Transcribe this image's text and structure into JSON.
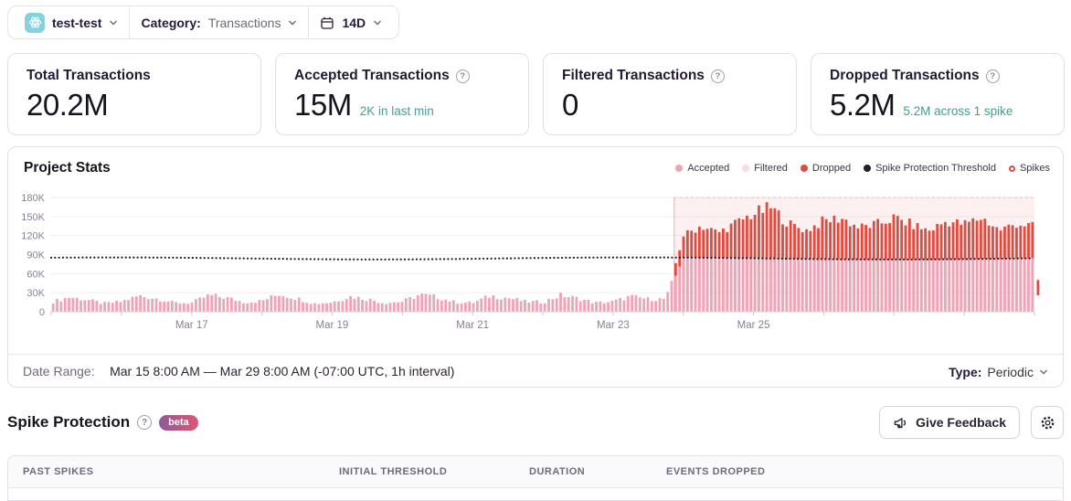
{
  "toolbar": {
    "project_name": "test-test",
    "category_label": "Category:",
    "category_value": "Transactions",
    "range_value": "14D"
  },
  "cards": [
    {
      "title": "Total Transactions",
      "value": "20.2M",
      "subtext": ""
    },
    {
      "title": "Accepted Transactions",
      "value": "15M",
      "subtext": "2K in last min"
    },
    {
      "title": "Filtered Transactions",
      "value": "0",
      "subtext": ""
    },
    {
      "title": "Dropped Transactions",
      "value": "5.2M",
      "subtext": "5.2M across 1 spike"
    }
  ],
  "chart": {
    "title": "Project Stats",
    "legend": [
      {
        "label": "Accepted",
        "color": "#eda4b6",
        "marker": "dot"
      },
      {
        "label": "Filtered",
        "color": "#f8dde4",
        "marker": "dot"
      },
      {
        "label": "Dropped",
        "color": "#de4b41",
        "marker": "dot"
      },
      {
        "label": "Spike Protection Threshold",
        "color": "#26202e",
        "marker": "dot"
      },
      {
        "label": "Spikes",
        "color": "#de4b41",
        "marker": "ring"
      }
    ],
    "footer": {
      "date_range_label": "Date Range:",
      "date_range_value": "Mar 15 8:00 AM — Mar 29 8:00 AM (-07:00 UTC, 1h interval)",
      "type_label": "Type:",
      "type_value": "Periodic"
    }
  },
  "chart_data": {
    "type": "bar",
    "stacked": true,
    "title": "Project Stats",
    "x_start": "Mar 15 8:00 AM",
    "x_end": "Mar 29 8:00 AM",
    "interval": "1h",
    "sample_interval_hours": 6,
    "x_tick_labels": [
      "Mar 17",
      "Mar 19",
      "Mar 21",
      "Mar 23",
      "Mar 25"
    ],
    "x_tick_label_days": [
      2,
      4,
      6,
      8,
      10
    ],
    "y_tick_labels": [
      "180K",
      "150K",
      "120K",
      "90K",
      "60K",
      "30K",
      "0"
    ],
    "ylim_k": [
      0,
      180
    ],
    "total_days": 14,
    "threshold_k": 84,
    "spike_region": {
      "start_day": 8.87,
      "end_day": 14,
      "fill": "rgba(222,75,65,0.08)"
    },
    "colors": {
      "accepted": "#eda4b6",
      "dropped": "#de4b41",
      "threshold": "#26202e"
    },
    "series": [
      {
        "name": "Accepted",
        "values_k": [
          15,
          23,
          19,
          13,
          16,
          25,
          21,
          14,
          14,
          26,
          22,
          15,
          17,
          28,
          21,
          13,
          15,
          24,
          20,
          14,
          16,
          27,
          23,
          15,
          14,
          25,
          22,
          16,
          15,
          26,
          21,
          14,
          16,
          24,
          20,
          20,
          85,
          85,
          85,
          85,
          85,
          85,
          85,
          85,
          85,
          85,
          85,
          85,
          85,
          85,
          85,
          85,
          85,
          85,
          85,
          85,
          85
        ]
      },
      {
        "name": "Dropped",
        "values_k": [
          0,
          0,
          0,
          0,
          0,
          0,
          0,
          0,
          0,
          0,
          0,
          0,
          0,
          0,
          0,
          0,
          0,
          0,
          0,
          0,
          0,
          0,
          0,
          0,
          0,
          0,
          0,
          0,
          0,
          0,
          0,
          0,
          0,
          0,
          0,
          0,
          35,
          50,
          40,
          55,
          70,
          80,
          55,
          45,
          60,
          65,
          50,
          55,
          65,
          55,
          45,
          60,
          55,
          65,
          45,
          55,
          50
        ]
      }
    ],
    "last_partial_bucket_k": {
      "from": 26,
      "to": 50
    },
    "legend_position": "top-right",
    "grid": true
  },
  "spike_section": {
    "title": "Spike Protection",
    "beta_badge": "beta",
    "feedback_button": "Give Feedback"
  },
  "table": {
    "columns": [
      "Past Spikes",
      "Initial Threshold",
      "Duration",
      "Events Dropped"
    ]
  }
}
